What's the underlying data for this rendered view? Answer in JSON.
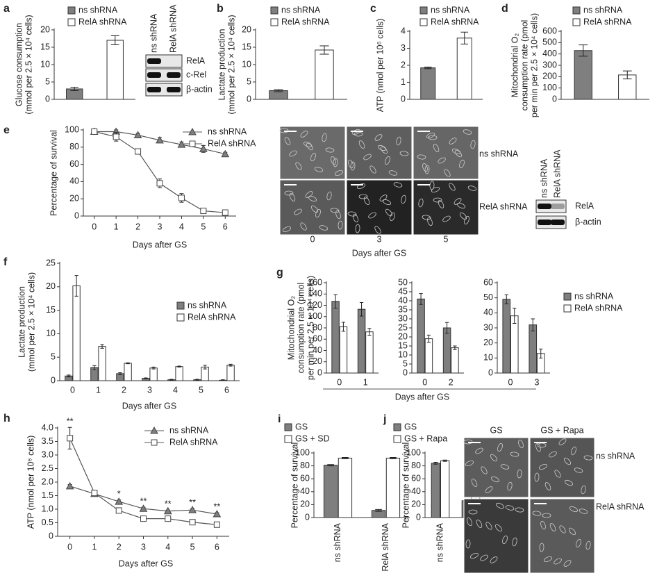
{
  "chart_data": [
    {
      "panel": "a",
      "type": "bar",
      "ylabel": [
        "Glucose consumption",
        "(mmol per 2.5 × 10⁴ cells)"
      ],
      "categories": [
        null
      ],
      "series": [
        {
          "name": "ns shRNA",
          "color": "#7f7f7f",
          "values": [
            3
          ],
          "errors": [
            0.5
          ]
        },
        {
          "name": "RelA shRNA",
          "color": "#ffffff",
          "values": [
            17
          ],
          "errors": [
            1.3
          ]
        }
      ],
      "ylim": [
        0,
        20
      ],
      "yticks": [
        0,
        5,
        10,
        15,
        20
      ],
      "grid": false,
      "legend": "top"
    },
    {
      "panel": "b",
      "type": "bar",
      "ylabel": [
        "Lactate production",
        "(mmol per 2.5 × 10⁴ cells)"
      ],
      "categories": [
        null
      ],
      "series": [
        {
          "name": "ns shRNA",
          "color": "#7f7f7f",
          "values": [
            2.5
          ],
          "errors": [
            0.3
          ]
        },
        {
          "name": "RelA shRNA",
          "color": "#ffffff",
          "values": [
            14.2
          ],
          "errors": [
            1.2
          ]
        }
      ],
      "ylim": [
        0,
        20
      ],
      "yticks": [
        0,
        5,
        10,
        15,
        20
      ],
      "grid": false,
      "legend": "top"
    },
    {
      "panel": "c",
      "type": "bar",
      "ylabel": [
        "ATP (nmol per 10⁶ cells)"
      ],
      "categories": [
        null
      ],
      "series": [
        {
          "name": "ns shRNA",
          "color": "#7f7f7f",
          "values": [
            1.85
          ],
          "errors": [
            0.05
          ]
        },
        {
          "name": "RelA shRNA",
          "color": "#ffffff",
          "values": [
            3.6
          ],
          "errors": [
            0.35
          ]
        }
      ],
      "ylim": [
        0,
        4
      ],
      "yticks": [
        0,
        1,
        2,
        3,
        4
      ],
      "grid": false,
      "legend": "top"
    },
    {
      "panel": "d",
      "type": "bar",
      "ylabel": [
        "Mitochondrial O₂",
        "consumption rate (pmol",
        "per min per 2.5 × 10⁴ cells)"
      ],
      "categories": [
        null
      ],
      "series": [
        {
          "name": "ns shRNA",
          "color": "#7f7f7f",
          "values": [
            430
          ],
          "errors": [
            50
          ]
        },
        {
          "name": "RelA shRNA",
          "color": "#ffffff",
          "values": [
            215
          ],
          "errors": [
            35
          ]
        }
      ],
      "ylim": [
        0,
        600
      ],
      "yticks": [
        0,
        100,
        200,
        300,
        400,
        500,
        600
      ],
      "grid": false,
      "legend": "top"
    },
    {
      "panel": "e",
      "type": "line",
      "ylabel": [
        "Percentage of survival"
      ],
      "xlabel": "Days after GS",
      "x": [
        0,
        1,
        2,
        3,
        4,
        5,
        6
      ],
      "xlim": [
        -0.5,
        6.5
      ],
      "xticks": [
        0,
        1,
        2,
        3,
        4,
        5,
        6
      ],
      "series": [
        {
          "name": "ns shRNA",
          "color": "#7f7f7f",
          "marker": "triangle",
          "values": [
            98,
            98,
            94,
            88,
            83,
            78,
            72
          ],
          "errors": [
            2,
            2,
            2,
            3,
            3,
            4,
            2
          ]
        },
        {
          "name": "RelA shRNA",
          "color": "#ffffff",
          "marker": "square",
          "values": [
            98,
            92,
            75,
            38,
            21,
            6,
            4
          ],
          "errors": [
            2,
            5,
            2,
            5,
            5,
            2,
            1
          ]
        }
      ],
      "ylim": [
        0,
        100
      ],
      "yticks": [
        0,
        20,
        40,
        60,
        80,
        100
      ],
      "grid": false,
      "legend": "top right"
    },
    {
      "panel": "f",
      "type": "bar",
      "ylabel": [
        "Lactate production",
        "(mmol per 2.5 × 10⁴ cells)"
      ],
      "xlabel": "Days after GS",
      "categories": [
        "0",
        "1",
        "2",
        "3",
        "4",
        "5",
        "6"
      ],
      "series": [
        {
          "name": "ns shRNA",
          "color": "#7f7f7f",
          "values": [
            1,
            2.8,
            1.5,
            0.5,
            0.2,
            0.2,
            0.1
          ],
          "errors": [
            0.2,
            0.4,
            0.2,
            0.1,
            0.1,
            0.1,
            0.1
          ]
        },
        {
          "name": "RelA shRNA",
          "color": "#ffffff",
          "values": [
            20.2,
            7.3,
            3.7,
            2.7,
            3.0,
            2.9,
            3.3
          ],
          "errors": [
            2.2,
            0.4,
            0.1,
            0.2,
            0.1,
            0.4,
            0.2
          ]
        }
      ],
      "ylim": [
        0,
        25
      ],
      "yticks": [
        0,
        5,
        10,
        15,
        20,
        25
      ],
      "grid": false,
      "legend": "right"
    },
    {
      "panel": "g",
      "type": "bar",
      "ylabel": [
        "Mitochondrial O₂",
        "consumption rate (pmol",
        "per min per 2.5 × 10⁴ cells)"
      ],
      "xlabel": "Days after GS",
      "categories": [
        "0",
        "1"
      ],
      "series": [
        {
          "name": "ns shRNA",
          "color": "#7f7f7f",
          "values": [
            127,
            113
          ],
          "errors": [
            12,
            12
          ]
        },
        {
          "name": "RelA shRNA",
          "color": "#ffffff",
          "values": [
            82,
            73
          ],
          "errors": [
            8,
            6
          ]
        }
      ],
      "ylim": [
        0,
        160
      ],
      "yticks": [
        0,
        20,
        40,
        60,
        80,
        100,
        120,
        140,
        160
      ],
      "grid": false
    },
    {
      "type": "bar",
      "categories": [
        "0",
        "2"
      ],
      "series": [
        {
          "name": "ns shRNA",
          "color": "#7f7f7f",
          "values": [
            41,
            25
          ],
          "errors": [
            3,
            3
          ]
        },
        {
          "name": "RelA shRNA",
          "color": "#ffffff",
          "values": [
            19,
            14
          ],
          "errors": [
            2,
            1
          ]
        }
      ],
      "ylim": [
        0,
        50
      ],
      "yticks": [
        0,
        5,
        10,
        15,
        20,
        25,
        30,
        35,
        40,
        45,
        50
      ],
      "grid": false
    },
    {
      "type": "bar",
      "categories": [
        "0",
        "3"
      ],
      "series": [
        {
          "name": "ns shRNA",
          "color": "#7f7f7f",
          "values": [
            49,
            32
          ],
          "errors": [
            3,
            4
          ]
        },
        {
          "name": "RelA shRNA",
          "color": "#ffffff",
          "values": [
            38,
            13
          ],
          "errors": [
            5,
            3
          ]
        }
      ],
      "ylim": [
        0,
        60
      ],
      "yticks": [
        0,
        10,
        20,
        30,
        40,
        50,
        60
      ],
      "grid": false,
      "legend": "right"
    },
    {
      "panel": "h",
      "type": "line",
      "ylabel": [
        "ATP (nmol per 10⁶ cells)"
      ],
      "xlabel": "Days after GS",
      "x": [
        0,
        1,
        2,
        3,
        4,
        5,
        6
      ],
      "xlim": [
        -0.5,
        6.5
      ],
      "xticks": [
        0,
        1,
        2,
        3,
        4,
        5,
        6
      ],
      "series": [
        {
          "name": "ns shRNA",
          "color": "#7f7f7f",
          "marker": "triangle",
          "values": [
            1.85,
            1.57,
            1.28,
            1.02,
            0.93,
            0.97,
            0.82
          ],
          "errors": [
            0.06,
            0.05,
            0.06,
            0.05,
            0.04,
            0.05,
            0.05
          ]
        },
        {
          "name": "RelA shRNA",
          "color": "#ffffff",
          "marker": "square",
          "values": [
            3.62,
            1.6,
            0.95,
            0.65,
            0.65,
            0.52,
            0.43
          ],
          "errors": [
            0.4,
            0.08,
            0.06,
            0.05,
            0.05,
            0.04,
            0.06
          ]
        }
      ],
      "ylim": [
        0,
        4
      ],
      "yticks": [
        0,
        0.5,
        {
          "value": 1,
          "label": "1.0"
        },
        1.5,
        {
          "value": 2,
          "label": "2.0"
        },
        2.5,
        {
          "value": 3,
          "label": "3.0"
        },
        3.5,
        {
          "value": 4,
          "label": "4.0"
        }
      ],
      "annotations": [
        {
          "x": 0,
          "text": "**"
        },
        {
          "x": 2,
          "text": "*"
        },
        {
          "x": 3,
          "text": "**"
        },
        {
          "x": 4,
          "text": "**"
        },
        {
          "x": 5,
          "text": "**"
        },
        {
          "x": 6,
          "text": "**"
        }
      ],
      "grid": false,
      "legend": "top right"
    },
    {
      "panel": "i",
      "type": "bar",
      "ylabel": [
        "Percentage of survival"
      ],
      "categories": [
        "ns shRNA",
        "RelA shRNA"
      ],
      "series": [
        {
          "name": "GS",
          "color": "#7f7f7f",
          "values": [
            81,
            11
          ],
          "errors": [
            1,
            1.5
          ]
        },
        {
          "name": "GS + SD",
          "color": "#ffffff",
          "values": [
            92,
            92
          ],
          "errors": [
            1,
            1
          ]
        }
      ],
      "ylim": [
        0,
        100
      ],
      "yticks": [
        0,
        20,
        40,
        60,
        80,
        100
      ],
      "grid": false,
      "legend": "top"
    },
    {
      "panel": "j",
      "type": "bar",
      "ylabel": [
        "Percentage of survival"
      ],
      "categories": [
        "ns shRNA",
        "RelA shRNA"
      ],
      "series": [
        {
          "name": "GS",
          "color": "#7f7f7f",
          "values": [
            84,
            26
          ],
          "errors": [
            1.5,
            2
          ]
        },
        {
          "name": "GS + Rapa",
          "color": "#ffffff",
          "values": [
            88,
            68
          ],
          "errors": [
            1,
            1.5
          ]
        }
      ],
      "ylim": [
        0,
        100
      ],
      "yticks": [
        0,
        20,
        40,
        60,
        80,
        100
      ],
      "grid": false,
      "legend": "top"
    }
  ],
  "figure": {
    "blot_a": {
      "lanes": [
        "ns shRNA",
        "RelA shRNA"
      ],
      "rows": [
        "RelA",
        "c-Rel",
        "β-actin"
      ]
    },
    "blot_e": {
      "lanes": [
        "ns shRNA",
        "RelA shRNA"
      ],
      "rows": [
        "RelA",
        "β-actin"
      ]
    },
    "micrographs_e": {
      "columns": [
        "0",
        "3",
        "5"
      ],
      "rows": [
        "ns shRNA",
        "RelA shRNA"
      ],
      "xlabel": "Days after GS"
    },
    "micrographs_j": {
      "columns": [
        "GS",
        "GS + Rapa"
      ],
      "rows": [
        "ns shRNA",
        "RelA shRNA"
      ]
    }
  }
}
